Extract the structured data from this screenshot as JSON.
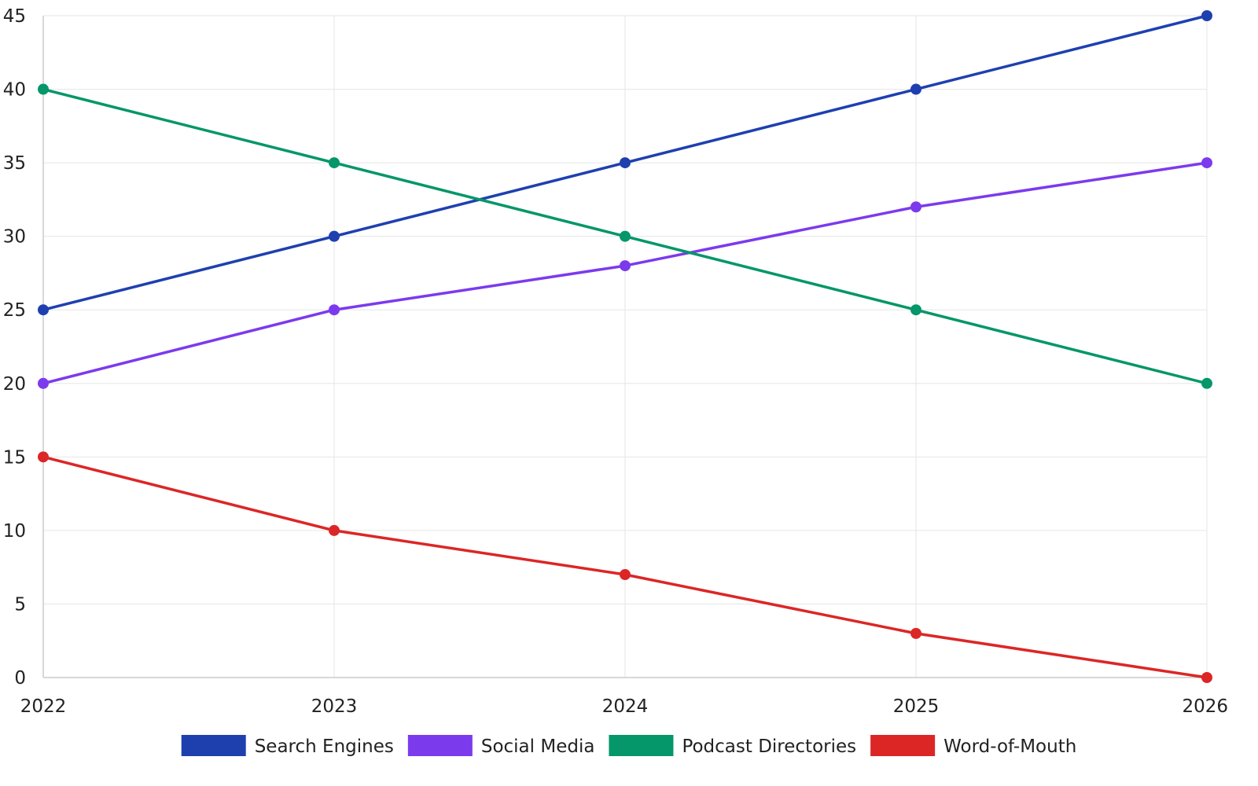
{
  "chart_data": {
    "type": "line",
    "x": [
      "2022",
      "2023",
      "2024",
      "2025",
      "2026"
    ],
    "ylim": [
      0,
      45
    ],
    "yticks": [
      0,
      5,
      10,
      15,
      20,
      25,
      30,
      35,
      40,
      45
    ],
    "grid": true,
    "legend_position": "bottom",
    "series": [
      {
        "name": "Search Engines",
        "color": "#1e40af",
        "values": [
          25,
          30,
          35,
          40,
          45
        ]
      },
      {
        "name": "Social Media",
        "color": "#7c3aed",
        "values": [
          20,
          25,
          28,
          32,
          35
        ]
      },
      {
        "name": "Podcast Directories",
        "color": "#059669",
        "values": [
          40,
          35,
          30,
          25,
          20
        ]
      },
      {
        "name": "Word-of-Mouth",
        "color": "#dc2626",
        "values": [
          15,
          10,
          7,
          3,
          0
        ]
      }
    ]
  }
}
